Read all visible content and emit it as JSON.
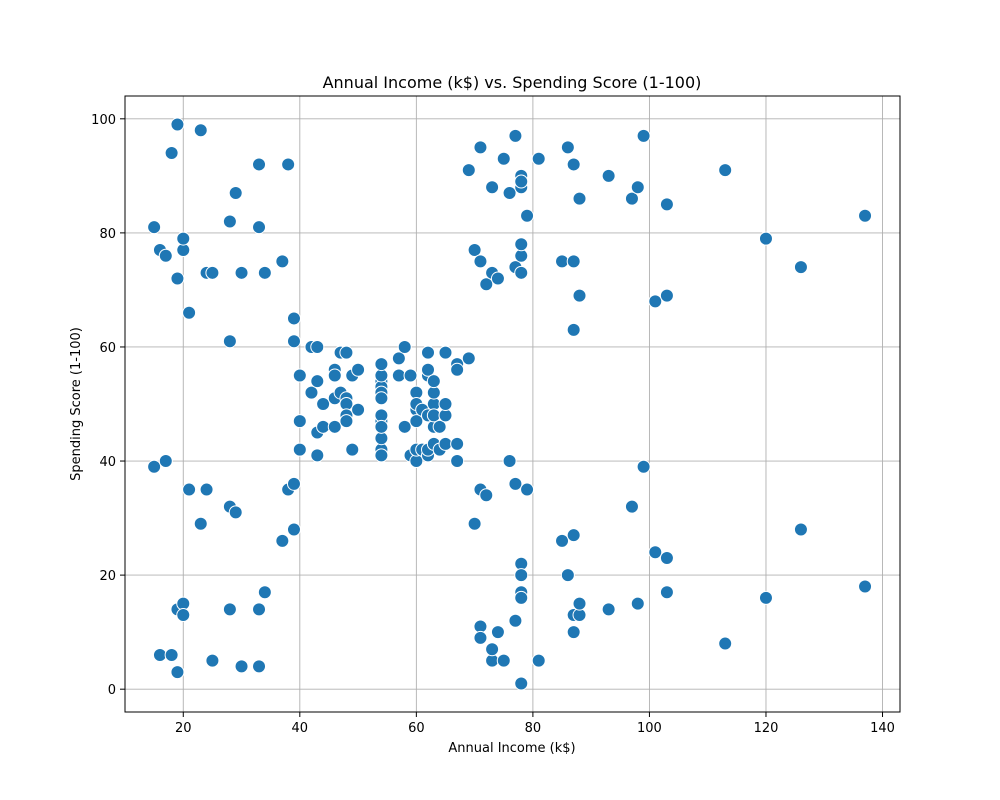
{
  "chart_data": {
    "type": "scatter",
    "title": "Annual Income (k$) vs. Spending Score (1-100)",
    "xlabel": "Annual Income (k$)",
    "ylabel": "Spending Score (1-100)",
    "xlim": [
      10,
      143
    ],
    "ylim": [
      -4,
      104
    ],
    "xticks": [
      20,
      40,
      60,
      80,
      100,
      120,
      140
    ],
    "yticks": [
      0,
      20,
      40,
      60,
      80,
      100
    ],
    "xtick_labels": [
      "20",
      "40",
      "60",
      "80",
      "100",
      "120",
      "140"
    ],
    "ytick_labels": [
      "0",
      "20",
      "40",
      "60",
      "80",
      "100"
    ],
    "grid": true,
    "color": "#1f77b4",
    "points": [
      [
        15,
        39
      ],
      [
        15,
        81
      ],
      [
        16,
        6
      ],
      [
        16,
        77
      ],
      [
        17,
        40
      ],
      [
        17,
        76
      ],
      [
        18,
        6
      ],
      [
        18,
        94
      ],
      [
        19,
        3
      ],
      [
        19,
        72
      ],
      [
        19,
        14
      ],
      [
        19,
        99
      ],
      [
        20,
        15
      ],
      [
        20,
        77
      ],
      [
        20,
        13
      ],
      [
        20,
        79
      ],
      [
        21,
        35
      ],
      [
        21,
        66
      ],
      [
        23,
        29
      ],
      [
        23,
        98
      ],
      [
        24,
        35
      ],
      [
        24,
        73
      ],
      [
        25,
        5
      ],
      [
        25,
        73
      ],
      [
        28,
        14
      ],
      [
        28,
        82
      ],
      [
        28,
        32
      ],
      [
        28,
        61
      ],
      [
        29,
        31
      ],
      [
        29,
        87
      ],
      [
        30,
        4
      ],
      [
        30,
        73
      ],
      [
        33,
        4
      ],
      [
        33,
        92
      ],
      [
        33,
        14
      ],
      [
        33,
        81
      ],
      [
        34,
        17
      ],
      [
        34,
        73
      ],
      [
        37,
        26
      ],
      [
        37,
        75
      ],
      [
        38,
        35
      ],
      [
        38,
        92
      ],
      [
        39,
        36
      ],
      [
        39,
        61
      ],
      [
        39,
        28
      ],
      [
        39,
        65
      ],
      [
        40,
        55
      ],
      [
        40,
        47
      ],
      [
        40,
        42
      ],
      [
        42,
        52
      ],
      [
        42,
        60
      ],
      [
        43,
        54
      ],
      [
        43,
        60
      ],
      [
        43,
        45
      ],
      [
        43,
        41
      ],
      [
        44,
        50
      ],
      [
        44,
        46
      ],
      [
        46,
        51
      ],
      [
        46,
        46
      ],
      [
        46,
        56
      ],
      [
        46,
        55
      ],
      [
        47,
        52
      ],
      [
        47,
        59
      ],
      [
        48,
        51
      ],
      [
        48,
        59
      ],
      [
        48,
        50
      ],
      [
        48,
        48
      ],
      [
        48,
        47
      ],
      [
        49,
        55
      ],
      [
        49,
        42
      ],
      [
        50,
        49
      ],
      [
        50,
        56
      ],
      [
        54,
        47
      ],
      [
        54,
        54
      ],
      [
        54,
        53
      ],
      [
        54,
        48
      ],
      [
        54,
        52
      ],
      [
        54,
        42
      ],
      [
        54,
        51
      ],
      [
        54,
        55
      ],
      [
        54,
        41
      ],
      [
        54,
        44
      ],
      [
        54,
        57
      ],
      [
        54,
        46
      ],
      [
        57,
        58
      ],
      [
        57,
        55
      ],
      [
        58,
        60
      ],
      [
        58,
        46
      ],
      [
        59,
        55
      ],
      [
        59,
        41
      ],
      [
        60,
        49
      ],
      [
        60,
        40
      ],
      [
        60,
        42
      ],
      [
        60,
        52
      ],
      [
        60,
        47
      ],
      [
        60,
        50
      ],
      [
        61,
        42
      ],
      [
        61,
        49
      ],
      [
        62,
        41
      ],
      [
        62,
        48
      ],
      [
        62,
        59
      ],
      [
        62,
        55
      ],
      [
        62,
        56
      ],
      [
        62,
        42
      ],
      [
        63,
        50
      ],
      [
        63,
        46
      ],
      [
        63,
        43
      ],
      [
        63,
        48
      ],
      [
        63,
        52
      ],
      [
        63,
        54
      ],
      [
        64,
        42
      ],
      [
        64,
        46
      ],
      [
        65,
        48
      ],
      [
        65,
        50
      ],
      [
        65,
        43
      ],
      [
        65,
        59
      ],
      [
        67,
        43
      ],
      [
        67,
        57
      ],
      [
        67,
        56
      ],
      [
        67,
        40
      ],
      [
        69,
        58
      ],
      [
        69,
        91
      ],
      [
        70,
        29
      ],
      [
        70,
        77
      ],
      [
        71,
        35
      ],
      [
        71,
        95
      ],
      [
        71,
        11
      ],
      [
        71,
        75
      ],
      [
        71,
        9
      ],
      [
        72,
        34
      ],
      [
        72,
        71
      ],
      [
        73,
        5
      ],
      [
        73,
        88
      ],
      [
        73,
        7
      ],
      [
        73,
        73
      ],
      [
        74,
        10
      ],
      [
        74,
        72
      ],
      [
        75,
        5
      ],
      [
        75,
        93
      ],
      [
        76,
        40
      ],
      [
        76,
        87
      ],
      [
        77,
        12
      ],
      [
        77,
        97
      ],
      [
        77,
        36
      ],
      [
        77,
        74
      ],
      [
        78,
        22
      ],
      [
        78,
        90
      ],
      [
        78,
        17
      ],
      [
        78,
        88
      ],
      [
        78,
        20
      ],
      [
        78,
        76
      ],
      [
        78,
        16
      ],
      [
        78,
        89
      ],
      [
        78,
        1
      ],
      [
        78,
        78
      ],
      [
        78,
        73
      ],
      [
        79,
        35
      ],
      [
        79,
        83
      ],
      [
        81,
        5
      ],
      [
        81,
        93
      ],
      [
        85,
        26
      ],
      [
        85,
        75
      ],
      [
        86,
        20
      ],
      [
        86,
        95
      ],
      [
        87,
        27
      ],
      [
        87,
        63
      ],
      [
        87,
        13
      ],
      [
        87,
        75
      ],
      [
        87,
        10
      ],
      [
        87,
        92
      ],
      [
        88,
        13
      ],
      [
        88,
        86
      ],
      [
        88,
        15
      ],
      [
        88,
        69
      ],
      [
        93,
        14
      ],
      [
        93,
        90
      ],
      [
        97,
        32
      ],
      [
        97,
        86
      ],
      [
        98,
        15
      ],
      [
        98,
        88
      ],
      [
        99,
        39
      ],
      [
        99,
        97
      ],
      [
        101,
        24
      ],
      [
        101,
        68
      ],
      [
        103,
        17
      ],
      [
        103,
        85
      ],
      [
        103,
        23
      ],
      [
        103,
        69
      ],
      [
        113,
        8
      ],
      [
        113,
        91
      ],
      [
        120,
        16
      ],
      [
        120,
        79
      ],
      [
        126,
        28
      ],
      [
        126,
        74
      ],
      [
        137,
        18
      ],
      [
        137,
        83
      ]
    ]
  }
}
